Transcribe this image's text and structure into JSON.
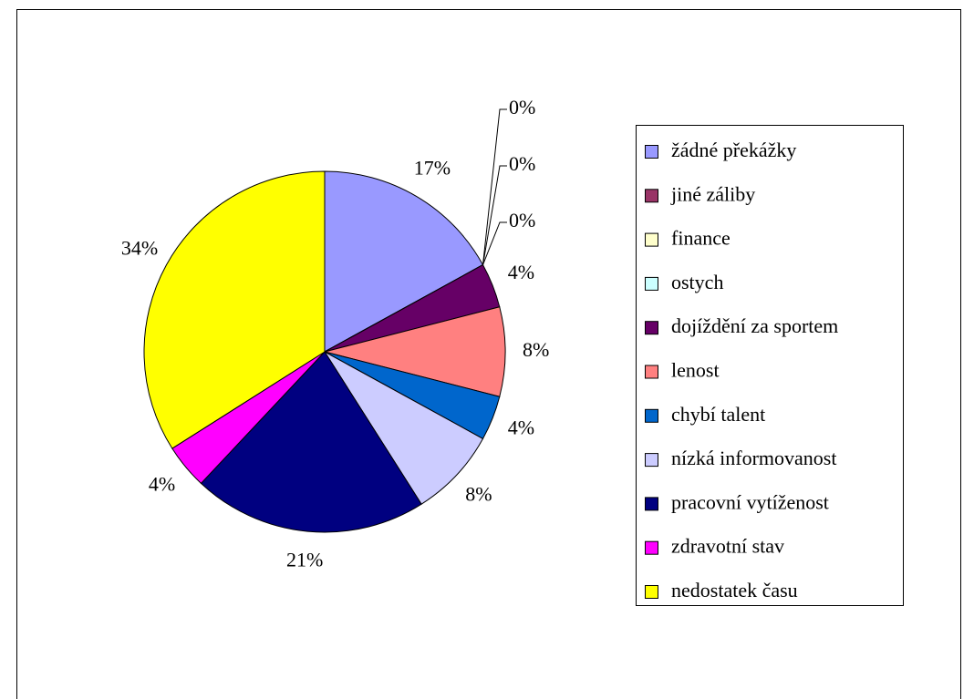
{
  "chart_data": {
    "type": "pie",
    "categories": [
      "žádné překážky",
      "jiné záliby",
      "finance",
      "ostych",
      "dojíždění za sportem",
      "lenost",
      "chybí talent",
      "nízká informovanost",
      "pracovní vytíženost",
      "zdravotní stav",
      "nedostatek času"
    ],
    "values": [
      17,
      0,
      0,
      0,
      4,
      8,
      4,
      8,
      21,
      4,
      34
    ],
    "value_labels": [
      "17%",
      "0%",
      "0%",
      "0%",
      "4%",
      "8%",
      "4%",
      "8%",
      "21%",
      "4%",
      "34%"
    ],
    "colors": [
      "#9999ff",
      "#993366",
      "#ffffcc",
      "#ccffff",
      "#660066",
      "#ff8080",
      "#0066cc",
      "#ccccff",
      "#000080",
      "#ff00ff",
      "#ffff00"
    ],
    "legend": "right"
  }
}
